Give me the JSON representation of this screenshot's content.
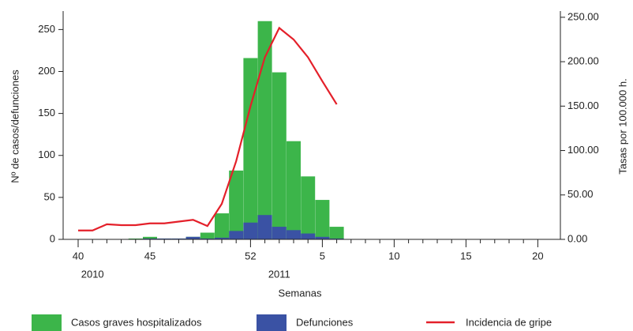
{
  "chart_data": {
    "type": "bar",
    "categories": [
      "40",
      null,
      null,
      null,
      null,
      "45",
      null,
      null,
      null,
      null,
      null,
      null,
      "52",
      null,
      null,
      null,
      null,
      "5",
      null,
      null,
      null,
      null,
      "10",
      null,
      null,
      null,
      null,
      "15",
      null,
      null,
      null,
      null,
      "20"
    ],
    "year_labels": [
      "2010",
      "2011"
    ],
    "x_label": "Semanas",
    "y_label": "Nº de casos/defunciones",
    "y2_label": "Tasas por 100.000 h.",
    "ylim": [
      0,
      272
    ],
    "yticks": [
      0,
      50,
      100,
      150,
      200,
      250
    ],
    "y2lim": [
      0,
      257
    ],
    "y2ticks": [
      {
        "value": 0,
        "label": "0.00"
      },
      {
        "value": 50,
        "label": "50.00"
      },
      {
        "value": 100,
        "label": "100.00"
      },
      {
        "value": 150,
        "label": "150.00"
      },
      {
        "value": 200,
        "label": "200.00"
      },
      {
        "value": 250,
        "label": "250.00"
      }
    ],
    "legend_position": "bottom",
    "series": [
      {
        "name": "Casos graves hospitalizados",
        "type": "bar",
        "color": "#3cb54a",
        "values": [
          0,
          0,
          0,
          0,
          1,
          3,
          1,
          1,
          3,
          8,
          31,
          82,
          216,
          260,
          199,
          117,
          75,
          47,
          15,
          0,
          0,
          0,
          0,
          0,
          0,
          0,
          0,
          0,
          0,
          0,
          0,
          0,
          0
        ]
      },
      {
        "name": "Defunciones",
        "type": "bar",
        "color": "#3a52a4",
        "values": [
          0,
          0,
          0,
          0,
          0,
          1,
          1,
          1,
          3,
          1,
          2,
          10,
          20,
          29,
          15,
          11,
          7,
          3,
          1,
          0,
          0,
          0,
          0,
          0,
          0,
          0,
          0,
          0,
          0,
          0,
          0,
          0,
          0
        ]
      },
      {
        "name": "Incidencia de gripe",
        "type": "line",
        "axis": "y2",
        "color": "#e4202a",
        "values": [
          10,
          10,
          17,
          16,
          16,
          18,
          18,
          20,
          22,
          15,
          40,
          88,
          150,
          205,
          238,
          225,
          205,
          178,
          152,
          null,
          null,
          null,
          null,
          null,
          null,
          null,
          null,
          null,
          null,
          null,
          null,
          null,
          null
        ]
      }
    ]
  }
}
